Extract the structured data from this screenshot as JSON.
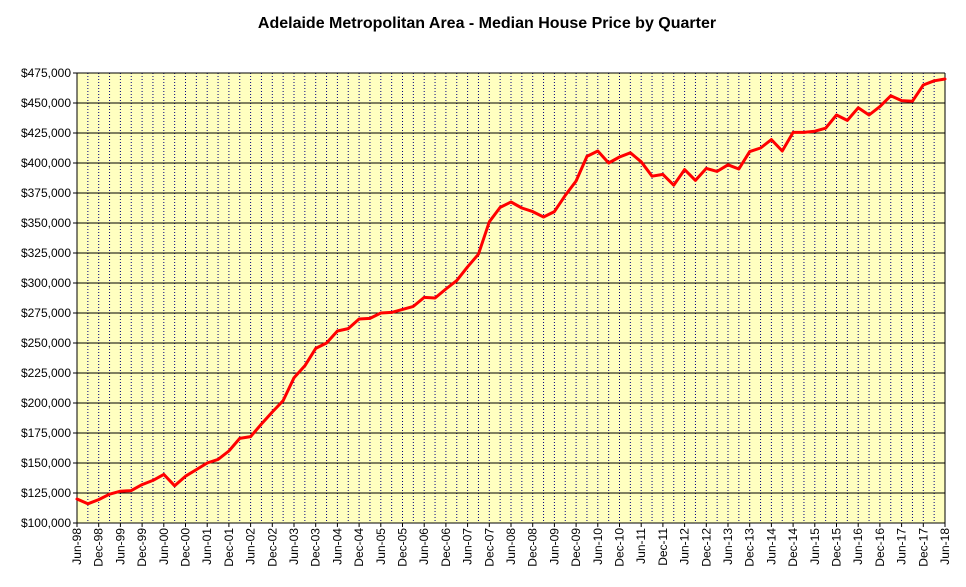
{
  "chart_data": {
    "type": "line",
    "title": "Adelaide Metropolitan Area - Median House Price by Quarter",
    "xlabel": "",
    "ylabel": "",
    "ylim": [
      100000,
      475000
    ],
    "ytick_labels": [
      "$100,000",
      "$125,000",
      "$150,000",
      "$175,000",
      "$200,000",
      "$225,000",
      "$250,000",
      "$275,000",
      "$300,000",
      "$325,000",
      "$350,000",
      "$375,000",
      "$400,000",
      "$425,000",
      "$450,000",
      "$475,000"
    ],
    "x": [
      "Jun-98",
      "Sep-98",
      "Dec-98",
      "Mar-99",
      "Jun-99",
      "Sep-99",
      "Dec-99",
      "Mar-00",
      "Jun-00",
      "Sep-00",
      "Dec-00",
      "Mar-01",
      "Jun-01",
      "Sep-01",
      "Dec-01",
      "Mar-02",
      "Jun-02",
      "Sep-02",
      "Dec-02",
      "Mar-03",
      "Jun-03",
      "Sep-03",
      "Dec-03",
      "Mar-04",
      "Jun-04",
      "Sep-04",
      "Dec-04",
      "Mar-05",
      "Jun-05",
      "Sep-05",
      "Dec-05",
      "Mar-06",
      "Jun-06",
      "Sep-06",
      "Dec-06",
      "Mar-07",
      "Jun-07",
      "Sep-07",
      "Dec-07",
      "Mar-08",
      "Jun-08",
      "Sep-08",
      "Dec-08",
      "Mar-09",
      "Jun-09",
      "Sep-09",
      "Dec-09",
      "Mar-10",
      "Jun-10",
      "Sep-10",
      "Dec-10",
      "Mar-11",
      "Jun-11",
      "Sep-11",
      "Dec-11",
      "Mar-12",
      "Jun-12",
      "Sep-12",
      "Dec-12",
      "Mar-13",
      "Jun-13",
      "Sep-13",
      "Dec-13",
      "Mar-14",
      "Jun-14",
      "Sep-14",
      "Dec-14",
      "Mar-15",
      "Jun-15",
      "Sep-15",
      "Dec-15",
      "Mar-16",
      "Jun-16",
      "Sep-16",
      "Dec-16",
      "Mar-17",
      "Jun-17",
      "Sep-17",
      "Dec-17",
      "Mar-18",
      "Jun-18"
    ],
    "xtick_labels": [
      "Jun-98",
      "Dec-98",
      "Jun-99",
      "Dec-99",
      "Jun-00",
      "Dec-00",
      "Jun-01",
      "Dec-01",
      "Jun-02",
      "Dec-02",
      "Jun-03",
      "Dec-03",
      "Jun-04",
      "Dec-04",
      "Jun-05",
      "Dec-05",
      "Jun-06",
      "Dec-06",
      "Jun-07",
      "Dec-07",
      "Jun-08",
      "Dec-08",
      "Jun-09",
      "Dec-09",
      "Jun-10",
      "Dec-10",
      "Jun-11",
      "Dec-11",
      "Jun-12",
      "Dec-12",
      "Jun-13",
      "Dec-13",
      "Jun-14",
      "Dec-14",
      "Jun-15",
      "Dec-15",
      "Jun-16",
      "Dec-16",
      "Jun-17",
      "Dec-17",
      "Jun-18"
    ],
    "series": [
      {
        "values": [
          120000,
          116000,
          119500,
          124000,
          126500,
          127000,
          132000,
          135500,
          140500,
          131000,
          139000,
          144500,
          150000,
          153000,
          160000,
          170500,
          172000,
          182500,
          192500,
          202000,
          221000,
          231000,
          245500,
          250000,
          260000,
          262000,
          270000,
          270500,
          275000,
          275500,
          278000,
          280500,
          288000,
          287500,
          295000,
          302000,
          313500,
          324000,
          351000,
          363000,
          367500,
          362500,
          359500,
          355000,
          359500,
          373000,
          385000,
          405500,
          410000,
          400000,
          405000,
          408500,
          401000,
          389000,
          390500,
          381500,
          394500,
          385500,
          395500,
          393000,
          398500,
          395000,
          409500,
          412500,
          419500,
          410000,
          425500,
          425500,
          426500,
          429000,
          440000,
          435500,
          446000,
          440000,
          447000,
          456000,
          452000,
          451500,
          465000,
          468500,
          470000
        ]
      }
    ],
    "grid": true,
    "colors": {
      "plot_background": "#ffffc0",
      "line": "#ff0000",
      "horizontal_grid": "#000000",
      "vertical_grid": "#000080"
    }
  }
}
